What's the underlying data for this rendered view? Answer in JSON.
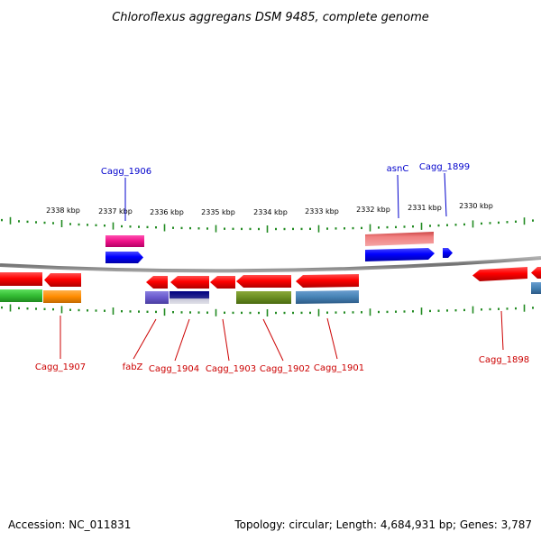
{
  "title": "Chloroflexus aggregans DSM 9485, complete genome",
  "footer": {
    "accession": "Accession: NC_011831",
    "topology": "Topology: circular; Length: 4,684,931 bp; Genes: 3,787"
  },
  "scale_labels": [
    "2338 kbp",
    "2337 kbp",
    "2336 kbp",
    "2335 kbp",
    "2334 kbp",
    "2333 kbp",
    "2332 kbp",
    "2331 kbp",
    "2330 kbp"
  ],
  "labels_top": [
    "Cagg_1906",
    "asnC",
    "Cagg_1899"
  ],
  "labels_bottom": [
    "Cagg_1907",
    "fabZ",
    "Cagg_1904",
    "Cagg_1903",
    "Cagg_1902",
    "Cagg_1901",
    "Cagg_1898"
  ],
  "colors": {
    "label_top": "#0000cc",
    "label_bottom": "#cc0000",
    "tick": "#228b22",
    "backbone": "#808080"
  }
}
